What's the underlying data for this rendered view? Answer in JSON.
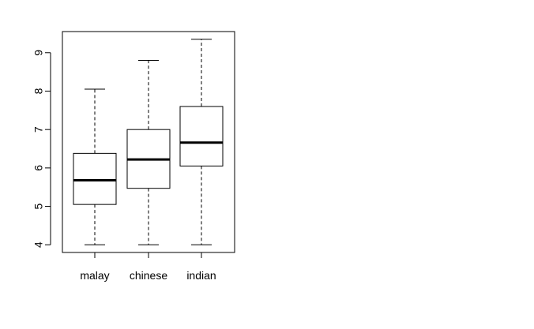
{
  "chart_data": {
    "type": "boxplot",
    "categories": [
      "malay",
      "chinese",
      "indian"
    ],
    "boxes": [
      {
        "category": "malay",
        "min": 4.0,
        "q1": 5.05,
        "median": 5.68,
        "q3": 6.38,
        "max": 8.05
      },
      {
        "category": "chinese",
        "min": 4.0,
        "q1": 5.47,
        "median": 6.22,
        "q3": 7.0,
        "max": 8.8
      },
      {
        "category": "indian",
        "min": 4.0,
        "q1": 6.05,
        "median": 6.66,
        "q3": 7.6,
        "max": 9.35
      }
    ],
    "y_ticks": [
      4,
      5,
      6,
      7,
      8,
      9
    ],
    "ylim": [
      3.8,
      9.55
    ],
    "title": "",
    "xlabel": "",
    "ylabel": "",
    "grid": false,
    "colors": {
      "stroke": "#000000",
      "fill": "#ffffff"
    }
  }
}
